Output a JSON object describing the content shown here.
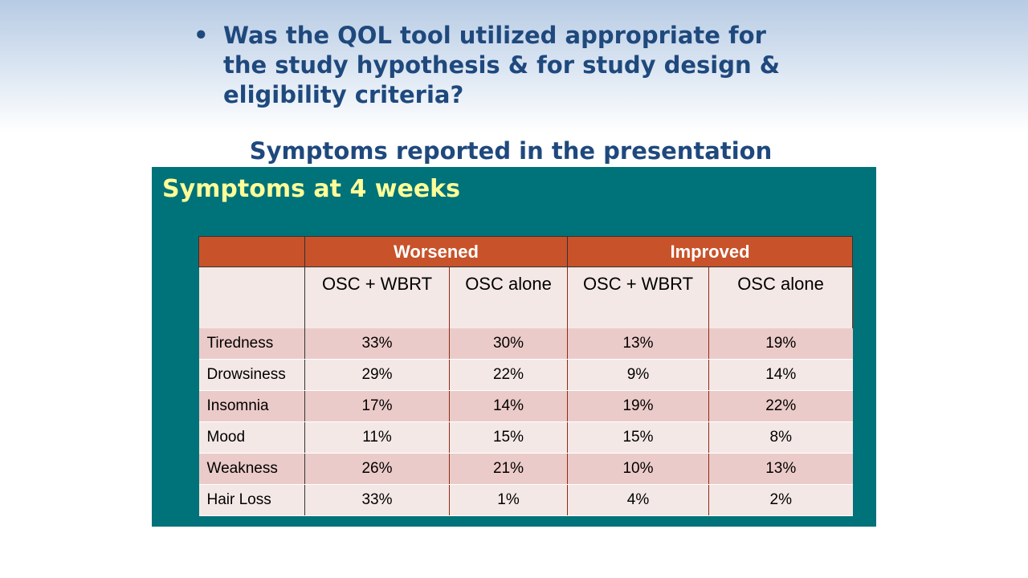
{
  "slide": {
    "bullet": "•",
    "question": "Was the QOL tool utilized appropriate for the study hypothesis & for study design & eligibility criteria?",
    "subtitle": "Symptoms reported in the presentation"
  },
  "panel": {
    "title": "Symptoms at 4 weeks"
  },
  "table": {
    "groups": [
      "Worsened",
      "Improved"
    ],
    "subheaders": [
      "OSC + WBRT",
      "OSC alone",
      "OSC + WBRT",
      "OSC alone"
    ],
    "rows": [
      {
        "label": "Tiredness",
        "values": [
          "33%",
          "30%",
          "13%",
          "19%"
        ]
      },
      {
        "label": "Drowsiness",
        "values": [
          "29%",
          "22%",
          "9%",
          "14%"
        ]
      },
      {
        "label": "Insomnia",
        "values": [
          "17%",
          "14%",
          "19%",
          "22%"
        ]
      },
      {
        "label": "Mood",
        "values": [
          "11%",
          "15%",
          "15%",
          "8%"
        ]
      },
      {
        "label": "Weakness",
        "values": [
          "26%",
          "21%",
          "10%",
          "13%"
        ]
      },
      {
        "label": "Hair Loss",
        "values": [
          "33%",
          "1%",
          "4%",
          "2%"
        ]
      }
    ]
  }
}
